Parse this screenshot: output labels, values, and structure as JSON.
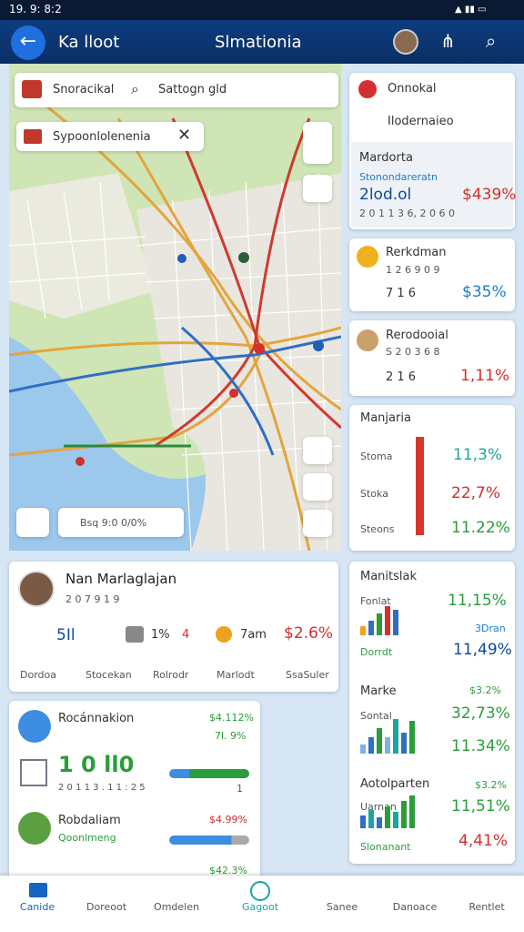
{
  "status_bar": {
    "time": "19. 9: 8:2"
  },
  "app_bar": {
    "title": "Ka lloot",
    "subtitle": "Slmationia"
  },
  "map": {
    "search_left": "Snoracikal",
    "search_right": "Sattogn gld",
    "layer": "Sypoonlolenenia",
    "footer": "Bsq 9:0 0/0%"
  },
  "side_cards": [
    {
      "title": "Onnokal",
      "subtitle": "Ilodernaieo",
      "section": "Mardorta",
      "label": "Stonondareratn",
      "value": "2lod.ol",
      "change": "$439%",
      "meta": "2 0 1 1 3 6, 2 0 6 0"
    },
    {
      "title": "Rerkdman",
      "meta": "1 2 6 9 0 9",
      "value": "7 1 6",
      "change": "$35%"
    },
    {
      "title": "Rerodooial",
      "meta": "S 2 0 3 6 8",
      "value": "2 1 6",
      "change": "1,11%"
    }
  ],
  "breakdown": {
    "title": "Manjaria",
    "rows": [
      [
        "Stoma",
        "11,3%"
      ],
      [
        "Stoka",
        "22,7%"
      ],
      [
        "Steons",
        "11.22%"
      ]
    ]
  },
  "profile": {
    "name": "Nan Marlaglajan",
    "meta": "2 0 7 9 1 9",
    "stats": [
      "5Il",
      "1%",
      "4",
      "7am",
      "$2.6%"
    ],
    "tags": [
      "Dordoa",
      "Stocekan",
      "Rolrodr",
      "Marlodt",
      "SsaSuler"
    ]
  },
  "metrics": [
    {
      "title": "Manitslak",
      "label_a": "Fonlat",
      "value_a": "11,15%",
      "note": "3Dran",
      "label_b": "Dorrdt",
      "value_b": "11,49%"
    },
    {
      "title": "Marke",
      "note": "$3.2%",
      "label_a": "Sontal",
      "value_a": "32,73%",
      "value_b": "11.34%"
    },
    {
      "title": "Aotolparten",
      "note": "$3.2%",
      "label_a": "Uarnan",
      "value_a": "11,51%",
      "label_b": "Slonanant",
      "value_b": "4,41%"
    }
  ],
  "list": [
    {
      "title": "Rocánnakion",
      "value": "$4.112%",
      "change": "7l. 9%",
      "big": "1 0 ll0",
      "meta": "2 0 1 1 3 . 1 1 : 2 5",
      "count": "1"
    },
    {
      "title": "Robdaliam",
      "subtitle": "Qoonlmeng",
      "value": "$4.99%"
    },
    {
      "value": "$42.3%"
    }
  ],
  "nav": [
    "Canide",
    "Doreoot",
    "Omdelen",
    "Gagoot",
    "Sanee",
    "Danoace",
    "Rentlet"
  ]
}
